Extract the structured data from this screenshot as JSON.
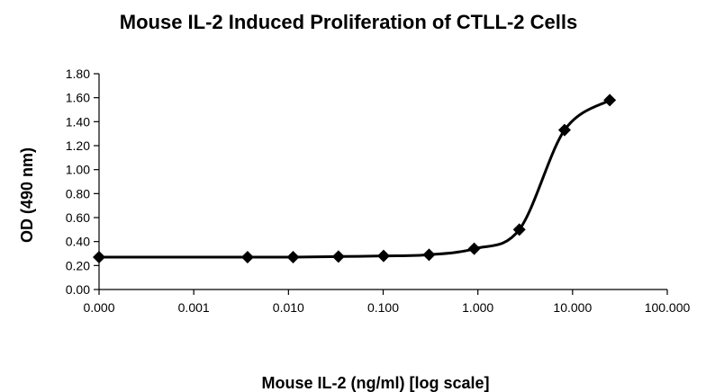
{
  "chart_data": {
    "type": "line",
    "title": "Mouse IL-2 Induced Proliferation of CTLL-2 Cells",
    "xlabel": "Mouse IL-2 (ng/ml) [log scale]",
    "ylabel": "OD (490 nm)",
    "x_scale": "log",
    "x_ticks": [
      "0.000",
      "0.001",
      "0.010",
      "0.100",
      "1.000",
      "10.000",
      "100.000"
    ],
    "x_tick_values": [
      0.0001,
      0.001,
      0.01,
      0.1,
      1,
      10,
      100
    ],
    "y_ticks": [
      "0.00",
      "0.20",
      "0.40",
      "0.60",
      "0.80",
      "1.00",
      "1.20",
      "1.40",
      "1.60",
      "1.80"
    ],
    "ylim": [
      0,
      1.8
    ],
    "grid": false,
    "legend": "none",
    "series": [
      {
        "marker": "diamond",
        "color": "#000000",
        "x": [
          0.0001,
          0.0037,
          0.0112,
          0.0337,
          0.101,
          0.305,
          0.914,
          2.74,
          8.23,
          24.7
        ],
        "y": [
          0.27,
          0.27,
          0.27,
          0.275,
          0.28,
          0.29,
          0.34,
          0.5,
          1.33,
          1.58
        ]
      }
    ]
  }
}
